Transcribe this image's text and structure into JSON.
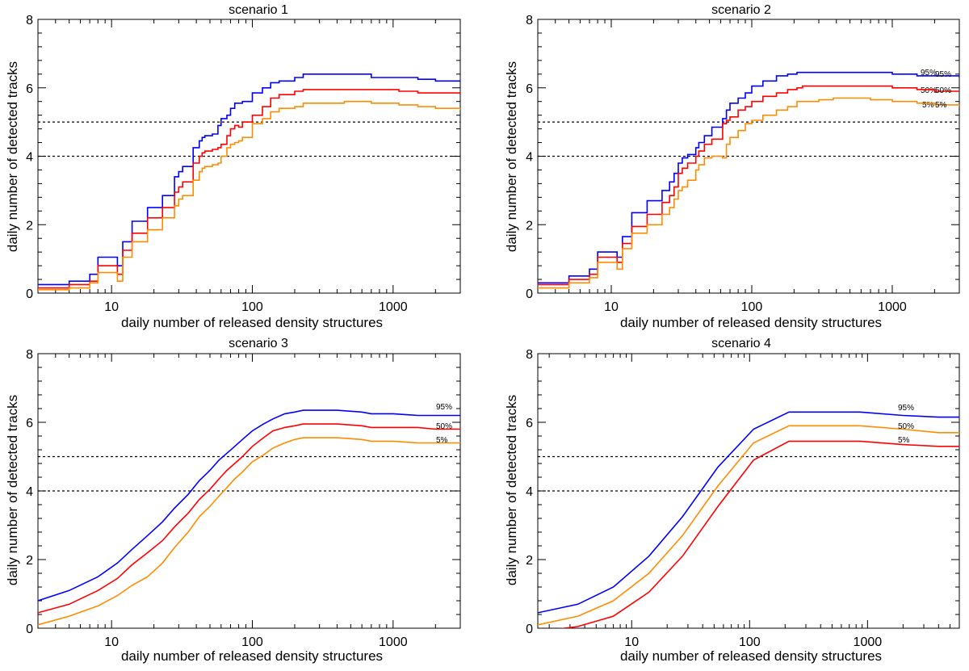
{
  "chart_data": [
    {
      "type": "line",
      "title": "scenario 1",
      "xlabel": "daily number of released density structures",
      "ylabel": "daily number of detected tracks",
      "xscale": "log",
      "xlim": [
        3,
        3000
      ],
      "ylim": [
        0,
        8
      ],
      "xticks": [
        10,
        100,
        1000
      ],
      "xtick_labels": [
        "10",
        "100",
        "1000"
      ],
      "yticks": [
        0,
        2,
        4,
        6,
        8
      ],
      "ytick_labels": [
        "0",
        "2",
        "4",
        "6",
        "8"
      ],
      "hlines": [
        4,
        5
      ],
      "series": [
        {
          "name": "95%",
          "color": "#0000ff",
          "step": true,
          "x": [
            3,
            5,
            7,
            8,
            11,
            12,
            14,
            18,
            23,
            28,
            30,
            32,
            38,
            42,
            44,
            46,
            52,
            57,
            60,
            66,
            70,
            75,
            85,
            100,
            118,
            135,
            155,
            200,
            230,
            500,
            700,
            1100,
            1500,
            2000,
            3000
          ],
          "y": [
            0.25,
            0.35,
            0.55,
            1.05,
            0.8,
            1.5,
            2.1,
            2.5,
            2.85,
            3.4,
            3.55,
            3.7,
            4.25,
            4.45,
            4.55,
            4.6,
            4.65,
            4.9,
            5.1,
            5.2,
            5.4,
            5.55,
            5.6,
            5.85,
            6.0,
            6.15,
            6.2,
            6.3,
            6.4,
            6.4,
            6.3,
            6.3,
            6.25,
            6.2,
            6.2
          ]
        },
        {
          "name": "50%",
          "color": "#ff0000",
          "step": true,
          "x": [
            3,
            5,
            7,
            8,
            11,
            12,
            14,
            18,
            23,
            28,
            30,
            32,
            38,
            42,
            44,
            46,
            52,
            57,
            60,
            66,
            70,
            75,
            80,
            85,
            100,
            118,
            135,
            155,
            200,
            230,
            500,
            700,
            1100,
            1500,
            2000,
            3000
          ],
          "y": [
            0.15,
            0.25,
            0.35,
            0.8,
            0.55,
            1.25,
            1.75,
            2.2,
            2.5,
            2.95,
            3.1,
            3.25,
            3.8,
            4.0,
            4.1,
            4.15,
            4.2,
            4.25,
            4.35,
            4.6,
            4.8,
            4.9,
            4.85,
            5.0,
            5.2,
            5.45,
            5.7,
            5.8,
            5.9,
            5.95,
            5.95,
            5.95,
            5.9,
            5.85,
            5.85,
            5.8
          ]
        },
        {
          "name": "5%",
          "color": "#ff8c00",
          "step": true,
          "x": [
            3,
            5,
            7,
            8,
            11,
            12,
            14,
            18,
            23,
            28,
            30,
            32,
            38,
            42,
            44,
            46,
            52,
            57,
            60,
            66,
            70,
            75,
            80,
            85,
            100,
            118,
            135,
            155,
            200,
            230,
            450,
            500,
            700,
            1100,
            1500,
            2000,
            3000
          ],
          "y": [
            0.1,
            0.15,
            0.3,
            0.6,
            0.35,
            1.05,
            1.5,
            1.85,
            2.2,
            2.55,
            2.75,
            2.85,
            3.3,
            3.55,
            3.65,
            3.7,
            3.75,
            3.8,
            4.0,
            4.25,
            4.35,
            4.4,
            4.45,
            4.55,
            4.95,
            5.1,
            5.3,
            5.4,
            5.45,
            5.55,
            5.6,
            5.6,
            5.55,
            5.5,
            5.45,
            5.4,
            5.35
          ]
        }
      ]
    },
    {
      "type": "line",
      "title": "scenario 2",
      "xlabel": "daily number of released density structures",
      "ylabel": "daily number of detected tracks",
      "xscale": "log",
      "xlim": [
        3,
        3000
      ],
      "ylim": [
        0,
        8
      ],
      "xticks": [
        10,
        100,
        1000
      ],
      "xtick_labels": [
        "10",
        "100",
        "1000"
      ],
      "yticks": [
        0,
        2,
        4,
        6,
        8
      ],
      "ytick_labels": [
        "0",
        "2",
        "4",
        "6",
        "8"
      ],
      "hlines": [
        4,
        5
      ],
      "series": [
        {
          "name": "95%",
          "color": "#0000ff",
          "step": true,
          "x": [
            3,
            5,
            7,
            8,
            11,
            12,
            14,
            18,
            23,
            26,
            28,
            30,
            32,
            35,
            40,
            42,
            46,
            52,
            62,
            66,
            70,
            80,
            90,
            100,
            120,
            150,
            180,
            210,
            230,
            700,
            1000,
            1500,
            2000,
            3000
          ],
          "y": [
            0.3,
            0.5,
            0.7,
            1.2,
            1.05,
            1.65,
            2.35,
            2.7,
            3.0,
            3.25,
            3.5,
            3.8,
            3.95,
            4.05,
            4.25,
            4.4,
            4.6,
            4.85,
            5.1,
            5.35,
            5.55,
            5.7,
            5.85,
            6.05,
            6.2,
            6.35,
            6.4,
            6.45,
            6.45,
            6.45,
            6.4,
            6.35,
            6.35,
            6.3
          ]
        },
        {
          "name": "50%",
          "color": "#ff0000",
          "step": true,
          "x": [
            3,
            5,
            7,
            8,
            11,
            12,
            14,
            18,
            23,
            26,
            28,
            30,
            32,
            35,
            40,
            42,
            46,
            52,
            62,
            66,
            70,
            80,
            90,
            100,
            120,
            150,
            180,
            210,
            230,
            700,
            1000,
            1500,
            2000,
            3000
          ],
          "y": [
            0.25,
            0.4,
            0.55,
            1.05,
            0.9,
            1.45,
            1.95,
            2.3,
            2.65,
            2.85,
            3.1,
            3.5,
            3.65,
            3.8,
            4.0,
            4.15,
            4.35,
            4.5,
            4.95,
            5.05,
            5.15,
            5.35,
            5.45,
            5.6,
            5.75,
            5.85,
            5.95,
            6.0,
            6.05,
            6.05,
            6.0,
            5.95,
            5.9,
            5.9
          ]
        },
        {
          "name": "5%",
          "color": "#ff8c00",
          "step": true,
          "x": [
            3,
            5,
            7,
            8,
            11,
            12,
            14,
            18,
            23,
            26,
            28,
            30,
            32,
            35,
            40,
            42,
            46,
            52,
            62,
            66,
            70,
            80,
            90,
            100,
            120,
            150,
            180,
            210,
            300,
            380,
            700,
            1000,
            1500,
            2000,
            3000
          ],
          "y": [
            0.15,
            0.3,
            0.45,
            0.9,
            0.7,
            1.3,
            1.75,
            2.0,
            2.3,
            2.5,
            2.75,
            3.0,
            3.1,
            3.3,
            3.6,
            3.75,
            3.95,
            4.0,
            3.95,
            4.35,
            4.55,
            4.75,
            4.95,
            5.05,
            5.2,
            5.35,
            5.45,
            5.6,
            5.65,
            5.7,
            5.65,
            5.6,
            5.55,
            5.5,
            5.45
          ]
        }
      ]
    },
    {
      "type": "line",
      "title": "scenario 3",
      "xlabel": "daily number of released density structures",
      "ylabel": "daily number of detected tracks",
      "xscale": "log",
      "xlim": [
        3,
        3000
      ],
      "ylim": [
        0,
        8
      ],
      "xticks": [
        10,
        100,
        1000
      ],
      "xtick_labels": [
        "10",
        "100",
        "1000"
      ],
      "yticks": [
        0,
        2,
        4,
        6,
        8
      ],
      "ytick_labels": [
        "0",
        "2",
        "4",
        "6",
        "8"
      ],
      "hlines": [
        4,
        5
      ],
      "series": [
        {
          "name": "95%",
          "color": "#0000ff",
          "x": [
            3,
            5,
            8,
            11,
            14,
            18,
            23,
            28,
            35,
            42,
            50,
            58,
            66,
            75,
            85,
            100,
            120,
            140,
            170,
            200,
            230,
            300,
            400,
            600,
            700,
            1000,
            1500,
            2000,
            3000
          ],
          "y": [
            0.8,
            1.1,
            1.5,
            1.9,
            2.3,
            2.7,
            3.1,
            3.5,
            3.9,
            4.3,
            4.6,
            4.9,
            5.1,
            5.3,
            5.5,
            5.75,
            5.95,
            6.1,
            6.25,
            6.3,
            6.35,
            6.35,
            6.35,
            6.3,
            6.25,
            6.25,
            6.2,
            6.2,
            6.2
          ]
        },
        {
          "name": "50%",
          "color": "#ff0000",
          "x": [
            3,
            5,
            8,
            11,
            14,
            18,
            23,
            28,
            35,
            42,
            50,
            58,
            66,
            75,
            85,
            100,
            120,
            140,
            170,
            200,
            230,
            300,
            400,
            600,
            700,
            1000,
            1500,
            2000,
            3000
          ],
          "y": [
            0.45,
            0.7,
            1.1,
            1.45,
            1.85,
            2.2,
            2.55,
            2.95,
            3.35,
            3.75,
            4.05,
            4.35,
            4.6,
            4.8,
            5.0,
            5.3,
            5.55,
            5.75,
            5.85,
            5.9,
            5.95,
            5.95,
            5.95,
            5.9,
            5.85,
            5.85,
            5.85,
            5.8,
            5.8
          ]
        },
        {
          "name": "5%",
          "color": "#ff8c00",
          "x": [
            3,
            5,
            8,
            11,
            14,
            18,
            23,
            28,
            35,
            42,
            50,
            58,
            66,
            75,
            85,
            100,
            120,
            140,
            170,
            200,
            230,
            300,
            400,
            600,
            700,
            1000,
            1500,
            2000,
            3000
          ],
          "y": [
            0.1,
            0.35,
            0.65,
            0.95,
            1.25,
            1.5,
            1.9,
            2.35,
            2.8,
            3.25,
            3.55,
            3.85,
            4.1,
            4.35,
            4.55,
            4.85,
            5.05,
            5.25,
            5.4,
            5.5,
            5.55,
            5.55,
            5.55,
            5.5,
            5.45,
            5.45,
            5.4,
            5.4,
            5.4
          ]
        }
      ]
    },
    {
      "type": "line",
      "title": "scenario 4",
      "xlabel": "daily number of released density structures",
      "ylabel": "daily number of detected tracks",
      "xscale": "log",
      "xlim": [
        1.6,
        6000
      ],
      "ylim": [
        0,
        8
      ],
      "xticks": [
        10,
        100,
        1000
      ],
      "xtick_labels": [
        "10",
        "100",
        "1000"
      ],
      "yticks": [
        0,
        2,
        4,
        6,
        8
      ],
      "ytick_labels": [
        "0",
        "2",
        "4",
        "6",
        "8"
      ],
      "hlines": [
        4,
        5
      ],
      "series": [
        {
          "name": "95%",
          "color": "#0000ff",
          "x": [
            1.6,
            3.5,
            7,
            14,
            27,
            54,
            108,
            216,
            432,
            864,
            2000,
            4000,
            6000
          ],
          "y": [
            0.45,
            0.7,
            1.2,
            2.1,
            3.25,
            4.7,
            5.8,
            6.3,
            6.3,
            6.3,
            6.2,
            6.15,
            6.15
          ]
        },
        {
          "name": "50%",
          "color": "#ff8c00",
          "x": [
            1.6,
            3.5,
            7,
            14,
            27,
            54,
            108,
            216,
            432,
            864,
            2000,
            4000,
            6000
          ],
          "y": [
            0.1,
            0.35,
            0.8,
            1.6,
            2.7,
            4.15,
            5.4,
            5.9,
            5.9,
            5.9,
            5.8,
            5.7,
            5.7
          ]
        },
        {
          "name": "5%",
          "color": "#ff0000",
          "x": [
            1.6,
            3.5,
            7,
            14,
            27,
            54,
            108,
            216,
            432,
            864,
            2000,
            4000,
            6000
          ],
          "y": [
            -0.1,
            0.05,
            0.35,
            1.05,
            2.1,
            3.55,
            4.9,
            5.45,
            5.45,
            5.45,
            5.35,
            5.3,
            5.3
          ]
        }
      ]
    }
  ]
}
